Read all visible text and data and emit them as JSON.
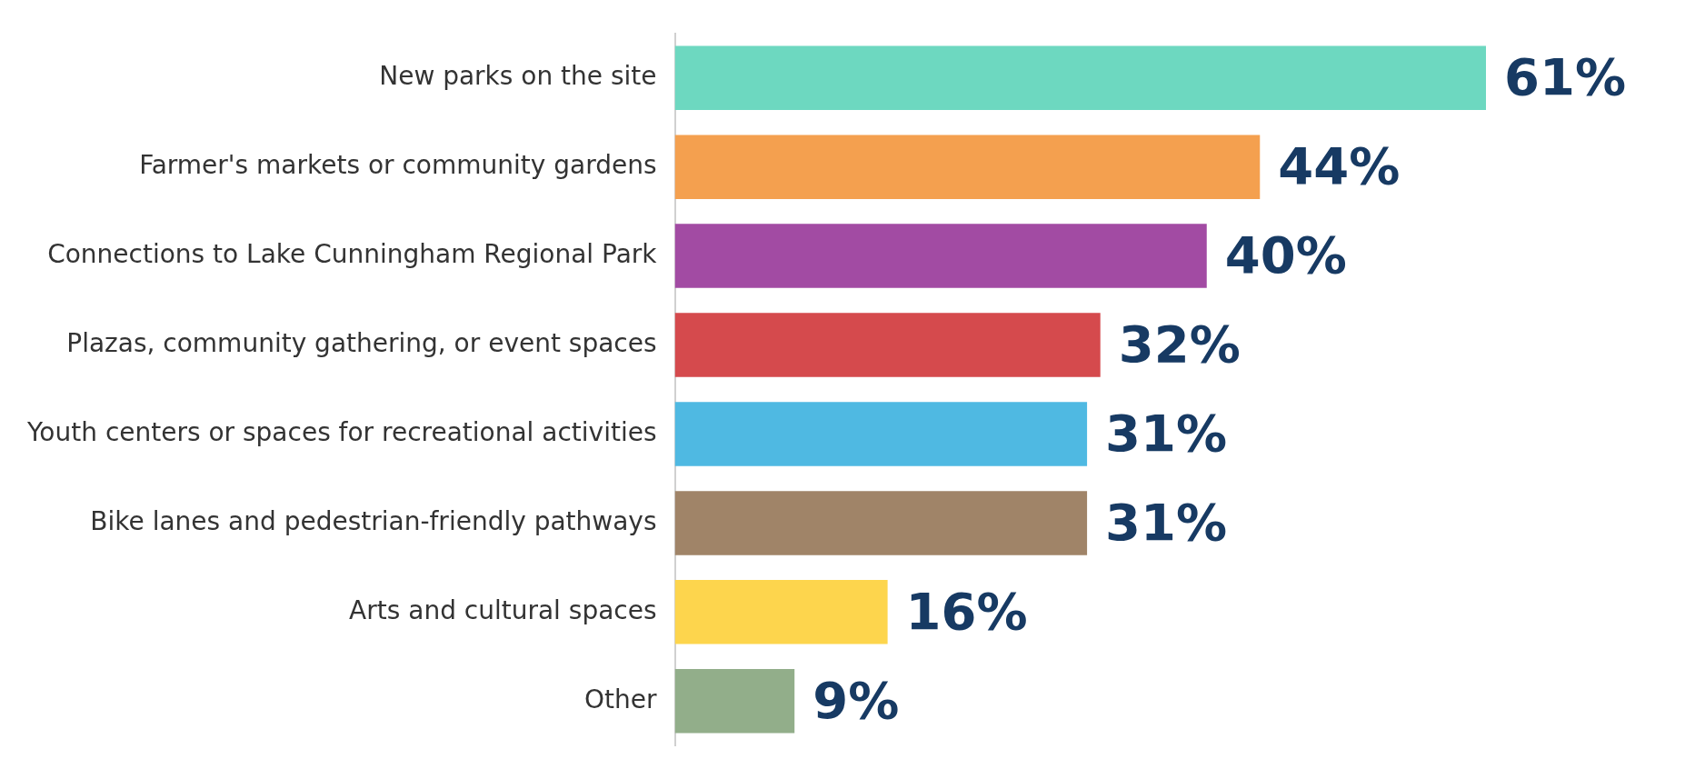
{
  "chart_data": {
    "type": "bar",
    "orientation": "horizontal",
    "categories": [
      "New parks on the site",
      "Farmer's markets or community gardens",
      "Connections to Lake Cunningham Regional Park",
      "Plazas, community gathering, or event spaces",
      "Youth centers or spaces for recreational activities",
      "Bike lanes and pedestrian-friendly pathways",
      "Arts and cultural spaces",
      "Other"
    ],
    "values": [
      61,
      44,
      40,
      32,
      31,
      31,
      16,
      9
    ],
    "colors": [
      "#6dd8c0",
      "#f4a04f",
      "#a24ba3",
      "#d54a4d",
      "#4fb9e2",
      "#a08468",
      "#fdd54d",
      "#92ae8a"
    ],
    "value_labels": [
      "61%",
      "44%",
      "40%",
      "32%",
      "31%",
      "31%",
      "16%",
      "9%"
    ],
    "xlim": [
      0,
      61
    ],
    "tick_labels": "y",
    "legend": false
  }
}
